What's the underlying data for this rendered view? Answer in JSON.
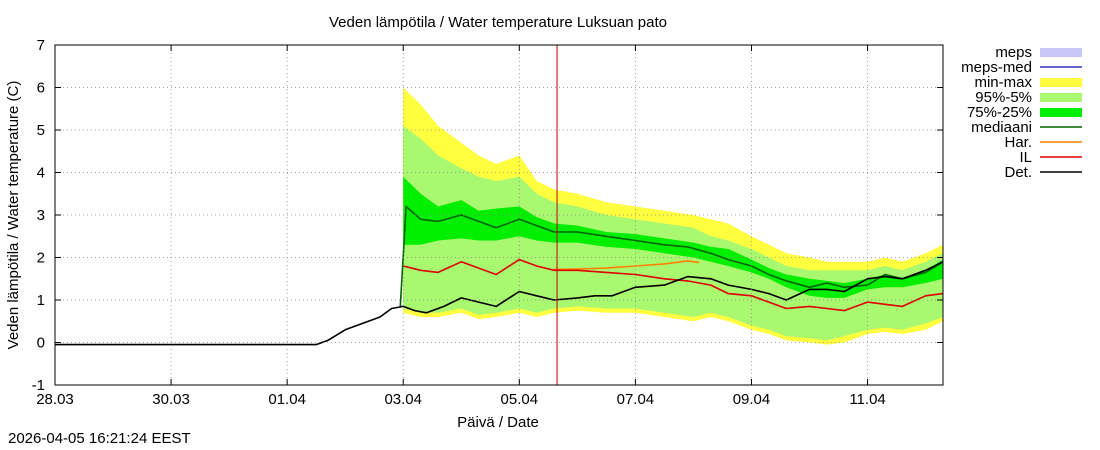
{
  "chart_data": {
    "type": "area",
    "title": "Veden lämpötila / Water temperature Luksuan pato",
    "xlabel": "Päivä / Date",
    "ylabel": "Veden lämpötila / Water temperature (C)",
    "timestamp": "2026-04-05 16:21:24 EEST",
    "ylim": [
      -1,
      7
    ],
    "xlim": [
      0,
      15.3
    ],
    "y_ticks": [
      -1,
      0,
      1,
      2,
      3,
      4,
      5,
      6,
      7
    ],
    "x_ticks": [
      {
        "value": 0,
        "label": "28.03"
      },
      {
        "value": 2,
        "label": "30.03"
      },
      {
        "value": 4,
        "label": "01.04"
      },
      {
        "value": 6,
        "label": "03.04"
      },
      {
        "value": 8,
        "label": "05.04"
      },
      {
        "value": 10,
        "label": "07.04"
      },
      {
        "value": 12,
        "label": "09.04"
      },
      {
        "value": 14,
        "label": "11.04"
      }
    ],
    "grid": true,
    "current_time": 8.65,
    "colors": {
      "meps": "#c8c8f8",
      "meps_med": "#3030c0",
      "minmax": "#ffff40",
      "p95_5": "#a8f870",
      "p75_25": "#00ee00",
      "median": "#006400",
      "har": "#ff8000",
      "il": "#e00000",
      "det": "#000000",
      "now_line": "#c00000"
    },
    "legend": [
      {
        "label": "meps",
        "kind": "band",
        "color_key": "meps"
      },
      {
        "label": "meps-med",
        "kind": "line",
        "color_key": "meps_med"
      },
      {
        "label": "min-max",
        "kind": "band",
        "color_key": "minmax"
      },
      {
        "label": "95%-5%",
        "kind": "band",
        "color_key": "p95_5"
      },
      {
        "label": "75%-25%",
        "kind": "band",
        "color_key": "p75_25"
      },
      {
        "label": "mediaani",
        "kind": "line",
        "color_key": "median"
      },
      {
        "label": "Har.",
        "kind": "line",
        "color_key": "har"
      },
      {
        "label": "IL",
        "kind": "line",
        "color_key": "il"
      },
      {
        "label": "Det.",
        "kind": "line",
        "color_key": "det"
      }
    ],
    "bands": {
      "x": [
        6.0,
        6.3,
        6.6,
        7.0,
        7.3,
        7.6,
        8.0,
        8.3,
        8.6,
        9.0,
        9.5,
        10.0,
        10.5,
        11.0,
        11.3,
        11.6,
        12.0,
        12.3,
        12.6,
        13.0,
        13.3,
        13.6,
        14.0,
        14.3,
        14.6,
        15.0,
        15.3
      ],
      "minmax_upper": [
        6.0,
        5.6,
        5.1,
        4.7,
        4.4,
        4.2,
        4.4,
        3.8,
        3.6,
        3.5,
        3.3,
        3.2,
        3.1,
        3.0,
        2.9,
        2.8,
        2.5,
        2.3,
        2.1,
        2.0,
        1.9,
        1.9,
        1.9,
        2.0,
        1.9,
        2.1,
        2.3
      ],
      "minmax_lower": [
        0.7,
        0.6,
        0.6,
        0.7,
        0.55,
        0.6,
        0.7,
        0.6,
        0.7,
        0.75,
        0.7,
        0.7,
        0.6,
        0.5,
        0.6,
        0.5,
        0.3,
        0.2,
        0.05,
        0.0,
        -0.05,
        0.0,
        0.2,
        0.25,
        0.2,
        0.3,
        0.5
      ],
      "p95_upper": [
        5.1,
        4.8,
        4.4,
        4.1,
        3.9,
        3.8,
        3.9,
        3.5,
        3.3,
        3.2,
        3.0,
        2.9,
        2.8,
        2.7,
        2.5,
        2.4,
        2.2,
        2.0,
        1.8,
        1.7,
        1.7,
        1.7,
        1.7,
        1.8,
        1.7,
        1.9,
        2.1
      ],
      "p95_lower": [
        0.8,
        0.7,
        0.7,
        0.8,
        0.65,
        0.7,
        0.8,
        0.7,
        0.8,
        0.85,
        0.8,
        0.8,
        0.7,
        0.6,
        0.7,
        0.6,
        0.4,
        0.3,
        0.15,
        0.1,
        0.05,
        0.15,
        0.3,
        0.35,
        0.3,
        0.45,
        0.6
      ],
      "p75_upper": [
        3.9,
        3.5,
        3.2,
        3.35,
        3.1,
        3.15,
        3.2,
        2.95,
        2.8,
        2.75,
        2.6,
        2.55,
        2.45,
        2.35,
        2.25,
        2.2,
        1.95,
        1.75,
        1.6,
        1.5,
        1.45,
        1.4,
        1.5,
        1.6,
        1.5,
        1.7,
        1.95
      ],
      "p75_lower": [
        2.3,
        2.3,
        2.4,
        2.45,
        2.4,
        2.4,
        2.5,
        2.4,
        2.35,
        2.35,
        2.25,
        2.2,
        2.1,
        2.0,
        1.9,
        1.8,
        1.65,
        1.5,
        1.3,
        1.1,
        1.05,
        1.05,
        1.25,
        1.3,
        1.3,
        1.4,
        1.5
      ]
    },
    "series": [
      {
        "name": "Det.",
        "color_key": "det",
        "x": [
          0,
          1,
          2,
          3,
          4,
          4.5,
          4.7,
          5.0,
          5.3,
          5.6,
          5.8,
          6.0,
          6.2,
          6.4,
          6.7,
          7.0,
          7.3,
          7.6,
          8.0,
          8.3,
          8.6,
          9.0,
          9.3,
          9.6,
          10.0,
          10.5,
          10.9,
          11.3,
          11.6,
          12.0,
          12.3,
          12.6,
          13.0,
          13.3,
          13.6,
          14.0,
          14.3,
          14.6,
          15.0,
          15.3
        ],
        "y": [
          -0.05,
          -0.05,
          -0.05,
          -0.05,
          -0.05,
          -0.05,
          0.05,
          0.3,
          0.45,
          0.6,
          0.8,
          0.85,
          0.75,
          0.7,
          0.85,
          1.05,
          0.95,
          0.85,
          1.2,
          1.1,
          1.0,
          1.05,
          1.1,
          1.1,
          1.3,
          1.35,
          1.55,
          1.5,
          1.35,
          1.25,
          1.15,
          1.0,
          1.25,
          1.25,
          1.2,
          1.5,
          1.55,
          1.5,
          1.7,
          1.9
        ]
      },
      {
        "name": "mediaani",
        "color_key": "median",
        "x": [
          5.95,
          6.05,
          6.3,
          6.6,
          7.0,
          7.3,
          7.6,
          8.0,
          8.3,
          8.6,
          9.0,
          9.5,
          10.0,
          10.5,
          10.9,
          11.3,
          11.6,
          12.0,
          12.3,
          12.6,
          13.0,
          13.3,
          13.6,
          14.0,
          14.3,
          14.6,
          15.0,
          15.3
        ],
        "y": [
          0.85,
          3.2,
          2.9,
          2.85,
          3.0,
          2.85,
          2.7,
          2.9,
          2.75,
          2.6,
          2.6,
          2.5,
          2.4,
          2.3,
          2.25,
          2.1,
          1.95,
          1.8,
          1.6,
          1.45,
          1.3,
          1.4,
          1.3,
          1.35,
          1.6,
          1.5,
          1.65,
          1.9
        ]
      },
      {
        "name": "IL",
        "color_key": "il",
        "x": [
          6.0,
          6.3,
          6.6,
          7.0,
          7.3,
          7.6,
          8.0,
          8.3,
          8.6,
          9.0,
          9.5,
          10.0,
          10.5,
          10.9,
          11.3,
          11.6,
          12.0,
          12.3,
          12.6,
          13.0,
          13.3,
          13.6,
          14.0,
          14.3,
          14.6,
          15.0,
          15.3
        ],
        "y": [
          1.8,
          1.7,
          1.65,
          1.9,
          1.75,
          1.6,
          1.95,
          1.8,
          1.7,
          1.7,
          1.65,
          1.6,
          1.5,
          1.45,
          1.35,
          1.15,
          1.1,
          0.95,
          0.8,
          0.85,
          0.8,
          0.75,
          0.95,
          0.9,
          0.85,
          1.1,
          1.15
        ]
      },
      {
        "name": "Har.",
        "color_key": "har",
        "x": [
          8.6,
          9.0,
          9.5,
          10.0,
          10.5,
          10.9,
          11.1
        ],
        "y": [
          1.72,
          1.73,
          1.75,
          1.8,
          1.85,
          1.92,
          1.88
        ]
      }
    ]
  }
}
